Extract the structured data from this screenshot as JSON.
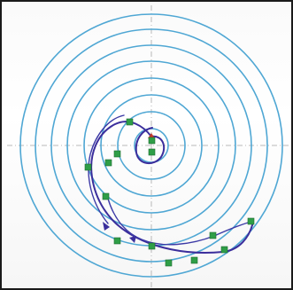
{
  "viewport": {
    "background": "#ffffff",
    "ring_color": "#4fa7d4",
    "spline_color": "#3b2e9c",
    "relation_color": "#2f9e47",
    "axis_color": "#b8b8b8"
  },
  "sketch": {
    "concentric_ring_count": 8,
    "relation_marker_count": 14,
    "spline_count": 3
  }
}
